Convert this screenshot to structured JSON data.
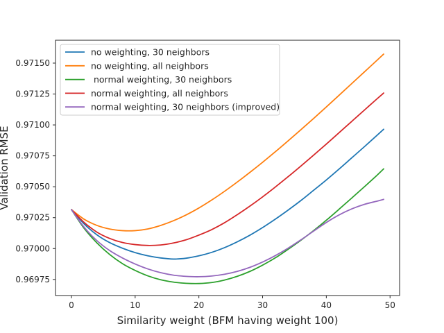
{
  "chart_data": {
    "type": "line",
    "title": "",
    "xlabel": "Similarity weight (BFM having weight 100)",
    "ylabel": "Validation RMSE",
    "xlim": [
      -2.5,
      51.5
    ],
    "ylim": [
      0.96962,
      0.971685
    ],
    "xticks": [
      0,
      10,
      20,
      30,
      40,
      50
    ],
    "yticks": [
      0.96975,
      0.97,
      0.97025,
      0.9705,
      0.97075,
      0.971,
      0.97125,
      0.9715
    ],
    "grid": false,
    "legend_position": "top-left",
    "series": [
      {
        "name": "no weighting, 30 neighbors",
        "color": "#1f77b4",
        "x": [
          0,
          2,
          4,
          6,
          8,
          10,
          12,
          14,
          16,
          18,
          20,
          22,
          24,
          26,
          28,
          30,
          32,
          34,
          36,
          38,
          40,
          42,
          44,
          46,
          48,
          49
        ],
        "y": [
          0.970315,
          0.970199,
          0.970111,
          0.970048,
          0.970003,
          0.969967,
          0.969941,
          0.969924,
          0.969915,
          0.969922,
          0.969941,
          0.969969,
          0.970007,
          0.970054,
          0.970108,
          0.97017,
          0.970238,
          0.970311,
          0.970388,
          0.970471,
          0.970555,
          0.970643,
          0.970734,
          0.970825,
          0.970918,
          0.970965
        ]
      },
      {
        "name": "no weighting, all neighbors",
        "color": "#ff7f0e",
        "x": [
          0,
          2,
          4,
          6,
          8,
          10,
          12,
          14,
          16,
          18,
          20,
          22,
          24,
          26,
          28,
          30,
          32,
          34,
          36,
          38,
          40,
          42,
          44,
          46,
          48,
          49
        ],
        "y": [
          0.970315,
          0.970237,
          0.970187,
          0.970158,
          0.970145,
          0.970145,
          0.970159,
          0.970187,
          0.970225,
          0.970272,
          0.970328,
          0.970392,
          0.970462,
          0.970537,
          0.970616,
          0.970698,
          0.970783,
          0.970871,
          0.970961,
          0.971052,
          0.971145,
          0.97124,
          0.971335,
          0.97143,
          0.971525,
          0.971573
        ]
      },
      {
        "name": " normal weighting, 30 neighbors",
        "color": "#2ca02c",
        "x": [
          0,
          2,
          4,
          6,
          8,
          10,
          12,
          14,
          16,
          18,
          20,
          22,
          24,
          26,
          28,
          30,
          32,
          34,
          36,
          38,
          40,
          42,
          44,
          46,
          48,
          49
        ],
        "y": [
          0.970315,
          0.970163,
          0.970046,
          0.969952,
          0.969878,
          0.969823,
          0.969779,
          0.969748,
          0.969729,
          0.969719,
          0.969717,
          0.969725,
          0.969745,
          0.969775,
          0.969815,
          0.969866,
          0.969925,
          0.969994,
          0.970067,
          0.970145,
          0.970229,
          0.970318,
          0.970409,
          0.970501,
          0.970595,
          0.970645
        ]
      },
      {
        "name": "normal weighting, all neighbors",
        "color": "#d62728",
        "x": [
          0,
          2,
          4,
          6,
          8,
          10,
          12,
          14,
          16,
          18,
          20,
          22,
          24,
          26,
          28,
          30,
          32,
          34,
          36,
          38,
          40,
          42,
          44,
          46,
          48,
          49
        ],
        "y": [
          0.970315,
          0.970211,
          0.970133,
          0.970082,
          0.970049,
          0.970032,
          0.970025,
          0.970029,
          0.970045,
          0.970071,
          0.970109,
          0.970153,
          0.970208,
          0.970273,
          0.970343,
          0.970418,
          0.970498,
          0.970581,
          0.970667,
          0.970755,
          0.970845,
          0.970937,
          0.971029,
          0.971121,
          0.971213,
          0.971258
        ]
      },
      {
        "name": "normal weighting, 30 neighbors (improved)",
        "color": "#9467bd",
        "x": [
          0,
          2,
          4,
          6,
          8,
          10,
          12,
          14,
          16,
          18,
          20,
          22,
          24,
          26,
          28,
          30,
          32,
          34,
          36,
          38,
          40,
          42,
          44,
          46,
          48,
          49
        ],
        "y": [
          0.970315,
          0.970172,
          0.970064,
          0.969984,
          0.969924,
          0.969875,
          0.969835,
          0.969805,
          0.969785,
          0.969775,
          0.969772,
          0.969778,
          0.969792,
          0.969815,
          0.969848,
          0.969891,
          0.969943,
          0.970003,
          0.97007,
          0.970141,
          0.970211,
          0.970272,
          0.970321,
          0.970358,
          0.970384,
          0.970398
        ]
      }
    ]
  }
}
